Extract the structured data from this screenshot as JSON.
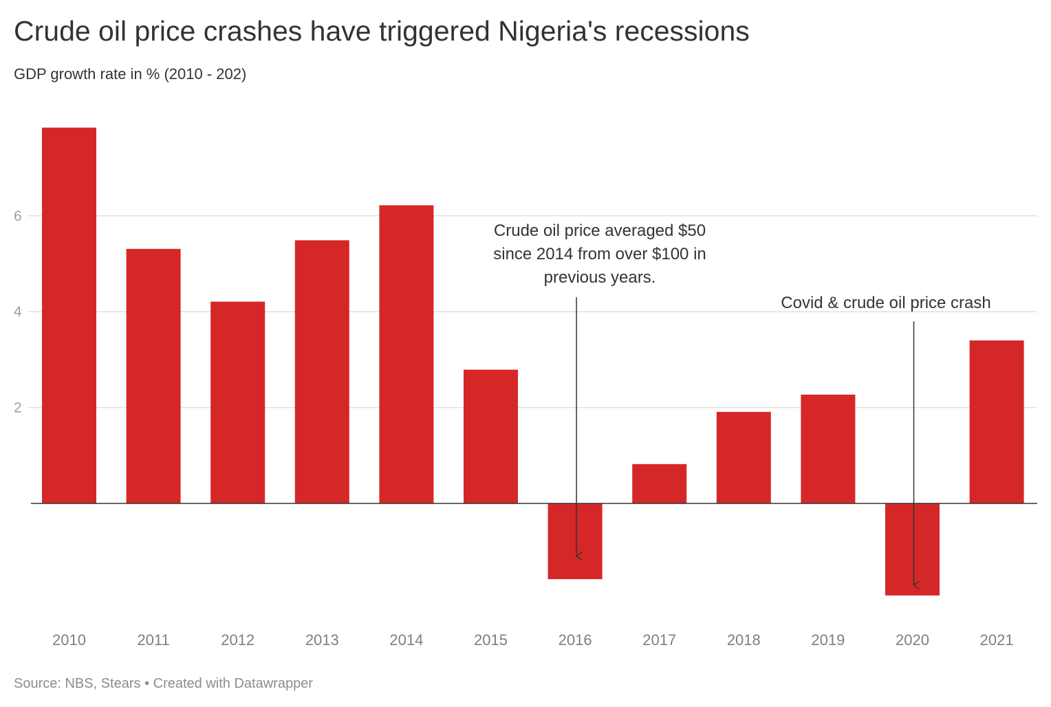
{
  "header": {
    "title": "Crude oil price crashes have triggered Nigeria's recessions",
    "subtitle": "GDP growth rate in % (2010 - 202)"
  },
  "footer": {
    "source": "Source: NBS, Stears • Created with Datawrapper"
  },
  "chart_data": {
    "type": "bar",
    "title": "Crude oil price crashes have triggered Nigeria's recessions",
    "subtitle": "GDP growth rate in % (2010 - 202)",
    "xlabel": "",
    "ylabel": "",
    "categories": [
      "2010",
      "2011",
      "2012",
      "2013",
      "2014",
      "2015",
      "2016",
      "2017",
      "2018",
      "2019",
      "2020",
      "2021"
    ],
    "values": [
      7.84,
      5.31,
      4.21,
      5.49,
      6.22,
      2.79,
      -1.58,
      0.82,
      1.91,
      2.27,
      -1.92,
      3.4
    ],
    "ylim": [
      -2.4,
      8.6
    ],
    "yticks": [
      2,
      4,
      6
    ],
    "grid": true,
    "bar_color": "#d62728",
    "gridline_color": "#e0e0e0",
    "baseline_color": "#333333",
    "annotations": [
      {
        "category": "2016",
        "lines": [
          "Crude oil price averaged $50",
          "since 2014 from over $100 in",
          "previous years."
        ],
        "arrow_from": 4.3,
        "arrow_to": -1.1
      },
      {
        "category": "2020",
        "lines": [
          "Covid & crude oil price crash"
        ],
        "arrow_from": 3.8,
        "arrow_to": -1.7
      }
    ]
  }
}
